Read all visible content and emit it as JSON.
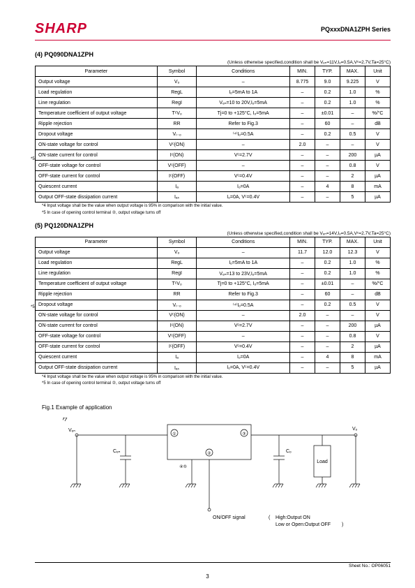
{
  "header": {
    "logo": "SHARP",
    "series": "PQxxxDNA1ZPH Series"
  },
  "section4": {
    "title": "(4) PQ090DNA1ZPH",
    "condition": "(Unless otherwise specified,condition shall be Vₑₙ=11V,Iₒ=0.5A,Vᶜ=2.7V,Ta=25°C)",
    "headers": [
      "Parameter",
      "Symbol",
      "Conditions",
      "MIN.",
      "TYP.",
      "MAX.",
      "Unit"
    ],
    "rows": [
      [
        "Output voltage",
        "Vₒ",
        "–",
        "8.775",
        "9.0",
        "9.225",
        "V"
      ],
      [
        "Load regulation",
        "RegL",
        "Iₒ=5mA to 1A",
        "–",
        "0.2",
        "1.0",
        "%"
      ],
      [
        "Line regulation",
        "RegI",
        "Vₑₙ=10 to 20V,Iₒ=5mA",
        "–",
        "0.2",
        "1.0",
        "%"
      ],
      [
        "Temperature coefficient of output voltage",
        "TᶜVₒ",
        "Tj=0 to +125°C, Iₒ=5mA",
        "–",
        "±0.01",
        "–",
        "%/°C"
      ],
      [
        "Ripple rejection",
        "RR",
        "Refer to Fig.3",
        "–",
        "60",
        "–",
        "dB"
      ],
      [
        "Dropout voltage",
        "Vᵢ₋ₒ",
        "⁽⁴⁾Iₒ=0.5A",
        "–",
        "0.2",
        "0.5",
        "V"
      ],
      [
        "ON-state voltage for control",
        "Vᶜ(ON)",
        "–",
        "2.0",
        "–",
        "–",
        "V"
      ],
      [
        "ON-state current for control",
        "Iᶜ(ON)",
        "Vᶜ=2.7V",
        "–",
        "–",
        "200",
        "µA"
      ],
      [
        "OFF-state voltage for control",
        "Vᶜ(OFF)",
        "–",
        "–",
        "–",
        "0.8",
        "V"
      ],
      [
        "OFF-state current for control",
        "Iᶜ(OFF)",
        "Vᶜ=0.4V",
        "–",
        "–",
        "2",
        "µA"
      ],
      [
        "Quiescent current",
        "Iₐ",
        "Iₒ=0A",
        "–",
        "4",
        "8",
        "mA"
      ],
      [
        "Output OFF-state dissipation current",
        "Iₐₛ",
        "Iₒ=0A, Vᶜ=0.4V",
        "–",
        "–",
        "5",
        "µA"
      ]
    ],
    "foot1": "*4  Input voltage shall be the value when output voltage is 95% in comparison with the initial value.",
    "foot2": "*5  In case of opening control terminal ②, output voltage turns off"
  },
  "section5": {
    "title": "(5) PQ120DNA1ZPH",
    "condition": "(Unless otherwise specified,condition shall be Vₑₙ=14V,Iₒ=0.5A,Vᶜ=2.7V,Ta=25°C)",
    "rows": [
      [
        "Output voltage",
        "Vₒ",
        "–",
        "11.7",
        "12.0",
        "12.3",
        "V"
      ],
      [
        "Load regulation",
        "RegL",
        "Iₒ=5mA to 1A",
        "–",
        "0.2",
        "1.0",
        "%"
      ],
      [
        "Line regulation",
        "RegI",
        "Vₑₙ=13 to 23V,Iₒ=5mA",
        "–",
        "0.2",
        "1.0",
        "%"
      ],
      [
        "Temperature coefficient of output voltage",
        "TᶜVₒ",
        "Tj=0 to +125°C, Iₒ=5mA",
        "–",
        "±0.01",
        "–",
        "%/°C"
      ],
      [
        "Ripple rejection",
        "RR",
        "Refer to Fig.3",
        "–",
        "60",
        "–",
        "dB"
      ],
      [
        "Dropout voltage",
        "Vᵢ₋ₒ",
        "⁽⁴⁾Iₒ=0.5A",
        "–",
        "0.2",
        "0.5",
        "V"
      ],
      [
        "ON-state voltage for control",
        "Vᶜ(ON)",
        "–",
        "2.0",
        "–",
        "–",
        "V"
      ],
      [
        "ON-state current for control",
        "Iᶜ(ON)",
        "Vᶜ=2.7V",
        "–",
        "–",
        "200",
        "µA"
      ],
      [
        "OFF-state voltage for control",
        "Vᶜ(OFF)",
        "–",
        "–",
        "–",
        "0.8",
        "V"
      ],
      [
        "OFF-state current for control",
        "Iᶜ(OFF)",
        "Vᶜ=0.4V",
        "–",
        "–",
        "2",
        "µA"
      ],
      [
        "Quiescent current",
        "Iₐ",
        "Iₒ=0A",
        "–",
        "4",
        "8",
        "mA"
      ],
      [
        "Output OFF-state dissipation current",
        "Iₐₛ",
        "Iₒ=0A, Vᶜ=0.4V",
        "–",
        "–",
        "5",
        "µA"
      ]
    ],
    "foot1": "*4  Input voltage shall be the value when output voltage is 95% in comparison with the initial value.",
    "foot2": "*5  In case of opening control terminal ②, output voltage turns off"
  },
  "figure": {
    "title": "Fig.1  Example of  application",
    "labels": {
      "vin": "Vₑₙ",
      "cin": "Cₑₙ",
      "co": "Cₒ",
      "vo": "Vₒ",
      "load": "Load",
      "signal": "ON/OFF signal",
      "note": "High:Output ON\nLow or Open:Output OFF",
      "p1": "①",
      "p2": "②",
      "p3": "④⑤",
      "p4": "③"
    }
  },
  "footer": {
    "sheet": "Sheet No.: OP06051",
    "page": "3"
  },
  "colwidths": [
    "170",
    "55",
    "130",
    "35",
    "35",
    "35",
    "35"
  ]
}
